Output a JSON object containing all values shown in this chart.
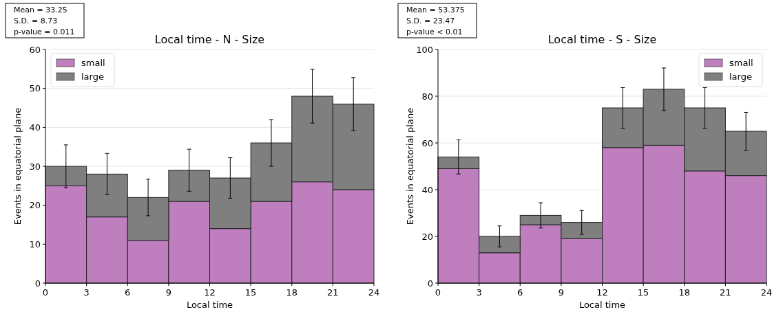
{
  "chart_data": [
    {
      "type": "bar",
      "title": "Local time - N - Size",
      "xlabel": "Local time",
      "ylabel": "Events in equatorial plane",
      "annotations": [
        "Mean = 33.25",
        "S.D. = 8.73",
        "p-value = 0.011"
      ],
      "x": [
        1.5,
        4.5,
        7.5,
        10.5,
        13.5,
        16.5,
        19.5,
        22.5
      ],
      "stacked": true,
      "series": [
        {
          "name": "small",
          "color": "#bf7fbf",
          "values": [
            25,
            17,
            11,
            21,
            14,
            21,
            26,
            24
          ]
        },
        {
          "name": "large",
          "color": "#7f7f7f",
          "values": [
            5,
            11,
            11,
            8,
            13,
            15,
            22,
            22
          ],
          "errors": [
            5.5,
            5.3,
            4.7,
            5.4,
            5.2,
            6,
            6.9,
            6.8
          ]
        }
      ],
      "xlim": [
        0,
        24
      ],
      "xticks": [
        0,
        3,
        6,
        9,
        12,
        15,
        18,
        21,
        24
      ],
      "ylim": [
        0,
        60
      ],
      "yticks": [
        0,
        10,
        20,
        30,
        40,
        50,
        60
      ],
      "grid": "y",
      "legend": "top left"
    },
    {
      "type": "bar",
      "title": "Local time - S - Size",
      "xlabel": "Local time",
      "ylabel": "Events in equatorial plane",
      "annotations": [
        "Mean = 53.375",
        "S.D. = 23.47",
        "p-value < 0.01"
      ],
      "x": [
        1.5,
        4.5,
        7.5,
        10.5,
        13.5,
        16.5,
        19.5,
        22.5
      ],
      "stacked": true,
      "series": [
        {
          "name": "small",
          "color": "#bf7fbf",
          "values": [
            49,
            13,
            25,
            19,
            58,
            59,
            48,
            46
          ]
        },
        {
          "name": "large",
          "color": "#7f7f7f",
          "values": [
            5,
            7,
            4,
            7,
            17,
            24,
            27,
            19
          ],
          "errors": [
            7.3,
            4.5,
            5.4,
            5.1,
            8.7,
            9.1,
            8.7,
            8.1
          ]
        }
      ],
      "xlim": [
        0,
        24
      ],
      "xticks": [
        0,
        3,
        6,
        9,
        12,
        15,
        18,
        21,
        24
      ],
      "ylim": [
        0,
        100
      ],
      "yticks": [
        0,
        20,
        40,
        60,
        80,
        100
      ],
      "grid": "y",
      "legend": "top right"
    }
  ]
}
